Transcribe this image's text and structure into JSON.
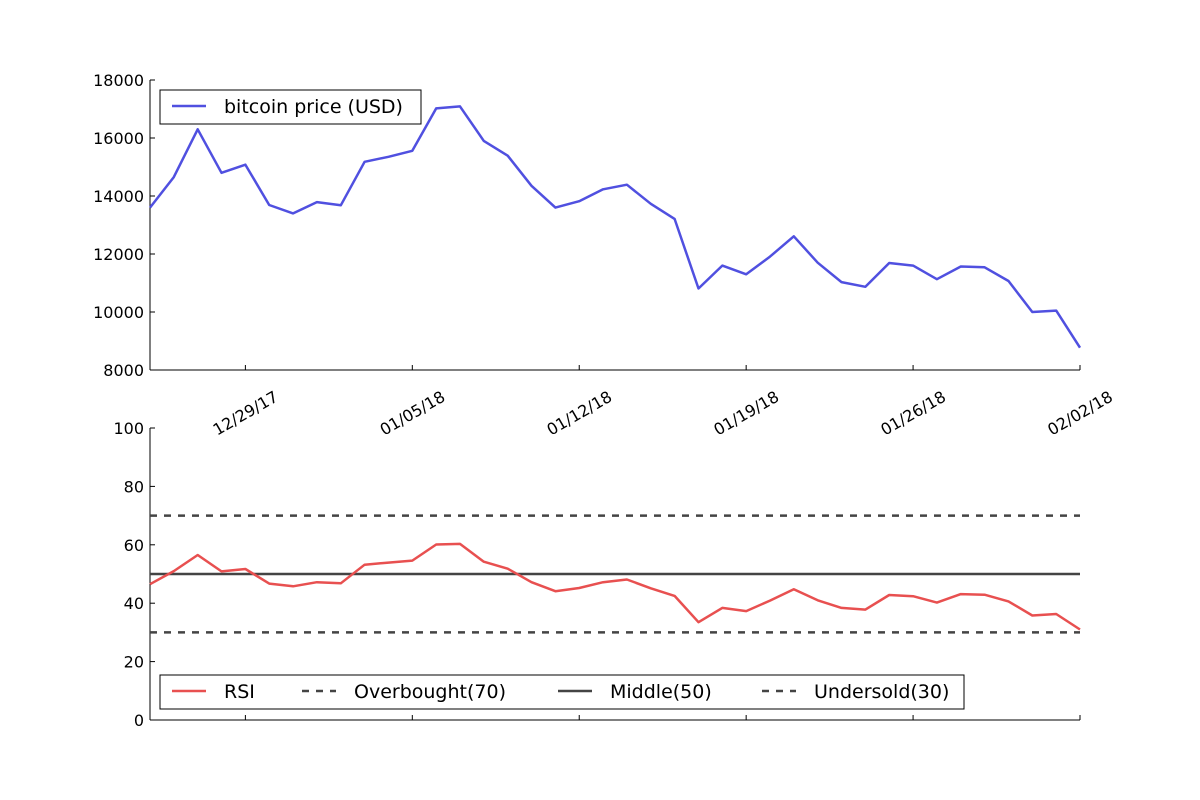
{
  "chart_data": [
    {
      "type": "line",
      "x": [
        "12/25/17",
        "12/26/17",
        "12/27/17",
        "12/28/17",
        "12/29/17",
        "12/30/17",
        "12/31/17",
        "01/01/18",
        "01/02/18",
        "01/03/18",
        "01/04/18",
        "01/05/18",
        "01/06/18",
        "01/07/18",
        "01/08/18",
        "01/09/18",
        "01/10/18",
        "01/11/18",
        "01/12/18",
        "01/13/18",
        "01/14/18",
        "01/15/18",
        "01/16/18",
        "01/17/18",
        "01/18/18",
        "01/19/18",
        "01/20/18",
        "01/21/18",
        "01/22/18",
        "01/23/18",
        "01/24/18",
        "01/25/18",
        "01/26/18",
        "01/27/18",
        "01/28/18",
        "01/29/18",
        "01/30/18",
        "01/31/18",
        "02/01/18",
        "02/02/18"
      ],
      "series": [
        {
          "name": "bitcoin price (USD)",
          "color": "#5050e0",
          "values": [
            13600,
            14650,
            16300,
            14800,
            15080,
            13690,
            13400,
            13790,
            13680,
            15180,
            15350,
            15560,
            17020,
            17090,
            15900,
            15390,
            14350,
            13600,
            13820,
            14230,
            14390,
            13730,
            13210,
            10810,
            11600,
            11300,
            11910,
            12610,
            11700,
            11030,
            10870,
            11690,
            11600,
            11130,
            11570,
            11540,
            11070,
            10000,
            10050,
            8770
          ]
        }
      ],
      "ylim": [
        8000,
        18000
      ],
      "yticks": [
        "8000",
        "10000",
        "12000",
        "14000",
        "16000",
        "18000"
      ],
      "xticks": [
        "12/29/17",
        "01/05/18",
        "01/12/18",
        "01/19/18",
        "01/26/18",
        "02/02/18"
      ],
      "legend_position": "top-left",
      "grid": false
    },
    {
      "type": "line",
      "x": [
        "12/25/17",
        "12/26/17",
        "12/27/17",
        "12/28/17",
        "12/29/17",
        "12/30/17",
        "12/31/17",
        "01/01/18",
        "01/02/18",
        "01/03/18",
        "01/04/18",
        "01/05/18",
        "01/06/18",
        "01/07/18",
        "01/08/18",
        "01/09/18",
        "01/10/18",
        "01/11/18",
        "01/12/18",
        "01/13/18",
        "01/14/18",
        "01/15/18",
        "01/16/18",
        "01/17/18",
        "01/18/18",
        "01/19/18",
        "01/20/18",
        "01/21/18",
        "01/22/18",
        "01/23/18",
        "01/24/18",
        "01/25/18",
        "01/26/18",
        "01/27/18",
        "01/28/18",
        "01/29/18",
        "01/30/18",
        "01/31/18",
        "02/01/18",
        "02/02/18"
      ],
      "series": [
        {
          "name": "RSI",
          "color": "#e85050",
          "values": [
            46.5,
            51,
            56.5,
            50.9,
            51.7,
            46.7,
            45.8,
            47.2,
            46.8,
            53.2,
            53.9,
            54.6,
            60.1,
            60.3,
            54.2,
            51.8,
            47.2,
            44.1,
            45.2,
            47.2,
            48.1,
            45.1,
            42.5,
            33.5,
            38.4,
            37.3,
            40.9,
            44.8,
            41,
            38.4,
            37.8,
            42.8,
            42.4,
            40.2,
            43.1,
            42.9,
            40.6,
            35.8,
            36.3,
            31
          ]
        }
      ],
      "reference_lines": [
        {
          "name": "Overbought(70)",
          "value": 70,
          "style": "dashed",
          "color": "#444444"
        },
        {
          "name": "Middle(50)",
          "value": 50,
          "style": "solid",
          "color": "#444444"
        },
        {
          "name": "Undersold(30)",
          "value": 30,
          "style": "dashed",
          "color": "#444444"
        }
      ],
      "ylim": [
        0,
        100
      ],
      "yticks": [
        "0",
        "20",
        "40",
        "60",
        "80",
        "100"
      ],
      "legend_position": "bottom-left",
      "grid": false
    }
  ]
}
